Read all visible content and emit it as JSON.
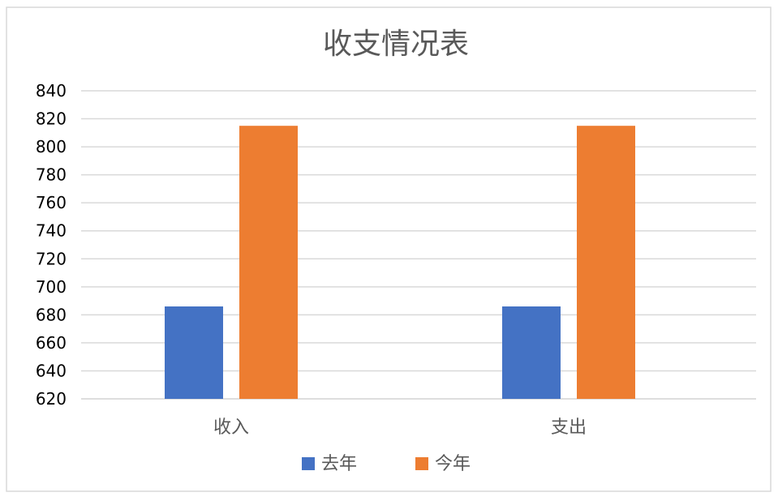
{
  "chart_data": {
    "type": "bar",
    "title": "收支情况表",
    "categories": [
      "收入",
      "支出"
    ],
    "series": [
      {
        "name": "去年",
        "values": [
          686,
          686
        ],
        "color": "#4472C4"
      },
      {
        "name": "今年",
        "values": [
          815,
          815
        ],
        "color": "#ED7D31"
      }
    ],
    "xlabel": "",
    "ylabel": "",
    "ylim": [
      620,
      840
    ],
    "yticks": [
      620,
      640,
      660,
      680,
      700,
      720,
      740,
      760,
      780,
      800,
      820,
      840
    ],
    "grid": true,
    "legend_position": "bottom"
  }
}
